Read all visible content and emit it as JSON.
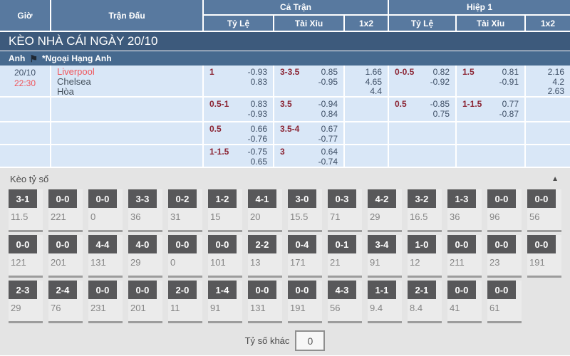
{
  "table_header": {
    "time": "Giờ",
    "match": "Trận Đấu",
    "full_time": "Cả Trận",
    "first_half": "Hiệp 1",
    "handicap": "Tỷ Lệ",
    "over_under": "Tài Xỉu",
    "one_x_two": "1x2"
  },
  "banner_title": "KÈO NHÀ CÁI NGÀY 20/10",
  "league": {
    "country": "Anh",
    "flag_glyph": "⚑",
    "name": "*Ngoại Hạng Anh"
  },
  "match": {
    "date": "20/10",
    "time": "22:30",
    "home": "Liverpool",
    "away": "Chelsea",
    "draw": "Hòa"
  },
  "odds_rows": [
    {
      "ft_handicap": {
        "line": "1",
        "odds": [
          "-0.93",
          "0.83"
        ]
      },
      "ft_over_under": {
        "line": "3-3.5",
        "odds": [
          "0.85",
          "-0.95"
        ]
      },
      "ft_1x2": [
        "1.66",
        "4.65",
        "4.4"
      ],
      "h1_handicap": {
        "line": "0-0.5",
        "odds": [
          "0.82",
          "-0.92"
        ]
      },
      "h1_over_under": {
        "line": "1.5",
        "odds": [
          "0.81",
          "-0.91"
        ]
      },
      "h1_1x2": [
        "2.16",
        "4.2",
        "2.63"
      ]
    },
    {
      "ft_handicap": {
        "line": "0.5-1",
        "odds": [
          "0.83",
          "-0.93"
        ]
      },
      "ft_over_under": {
        "line": "3.5",
        "odds": [
          "-0.94",
          "0.84"
        ]
      },
      "h1_handicap": {
        "line": "0.5",
        "odds": [
          "-0.85",
          "0.75"
        ]
      },
      "h1_over_under": {
        "line": "1-1.5",
        "odds": [
          "0.77",
          "-0.87"
        ]
      }
    },
    {
      "ft_handicap": {
        "line": "0.5",
        "odds": [
          "0.66",
          "-0.76"
        ]
      },
      "ft_over_under": {
        "line": "3.5-4",
        "odds": [
          "0.67",
          "-0.77"
        ]
      }
    },
    {
      "ft_handicap": {
        "line": "1-1.5",
        "odds": [
          "-0.75",
          "0.65"
        ]
      },
      "ft_over_under": {
        "line": "3",
        "odds": [
          "0.64",
          "-0.74"
        ]
      }
    }
  ],
  "score_section": {
    "title": "Kèo tỷ số",
    "collapse_icon": "▲",
    "other_label": "Tỷ số khác",
    "other_value": "0",
    "rows": [
      [
        {
          "score": "3-1",
          "value": "11.5"
        },
        {
          "score": "0-0",
          "value": "221"
        },
        {
          "score": "0-0",
          "value": "0"
        },
        {
          "score": "3-3",
          "value": "36"
        },
        {
          "score": "0-2",
          "value": "31"
        },
        {
          "score": "1-2",
          "value": "15"
        },
        {
          "score": "4-1",
          "value": "20"
        },
        {
          "score": "3-0",
          "value": "15.5"
        },
        {
          "score": "0-3",
          "value": "71"
        },
        {
          "score": "4-2",
          "value": "29"
        },
        {
          "score": "3-2",
          "value": "16.5"
        },
        {
          "score": "1-3",
          "value": "36"
        },
        {
          "score": "0-0",
          "value": "96"
        },
        {
          "score": "0-0",
          "value": "56"
        }
      ],
      [
        {
          "score": "0-0",
          "value": "121"
        },
        {
          "score": "0-0",
          "value": "201"
        },
        {
          "score": "4-4",
          "value": "131"
        },
        {
          "score": "4-0",
          "value": "29"
        },
        {
          "score": "0-0",
          "value": "0"
        },
        {
          "score": "0-0",
          "value": "101"
        },
        {
          "score": "2-2",
          "value": "13"
        },
        {
          "score": "0-4",
          "value": "171"
        },
        {
          "score": "0-1",
          "value": "21"
        },
        {
          "score": "3-4",
          "value": "91"
        },
        {
          "score": "1-0",
          "value": "12"
        },
        {
          "score": "0-0",
          "value": "211"
        },
        {
          "score": "0-0",
          "value": "23"
        },
        {
          "score": "0-0",
          "value": "191"
        }
      ],
      [
        {
          "score": "2-3",
          "value": "29"
        },
        {
          "score": "2-4",
          "value": "76"
        },
        {
          "score": "0-0",
          "value": "231"
        },
        {
          "score": "0-0",
          "value": "201"
        },
        {
          "score": "2-0",
          "value": "11"
        },
        {
          "score": "1-4",
          "value": "91"
        },
        {
          "score": "0-0",
          "value": "131"
        },
        {
          "score": "0-0",
          "value": "191"
        },
        {
          "score": "4-3",
          "value": "56"
        },
        {
          "score": "1-1",
          "value": "9.4"
        },
        {
          "score": "2-1",
          "value": "8.4"
        },
        {
          "score": "0-0",
          "value": "41"
        },
        {
          "score": "0-0",
          "value": "61"
        },
        null
      ]
    ]
  },
  "colors": {
    "header_blue": "#58799f",
    "banner_blue": "#3d5a7c",
    "league_blue": "#476a8f",
    "row_light_blue": "#d9e7f7",
    "line_maroon": "#8b2433",
    "odds_navy": "#3e4f66",
    "accent_red": "#f0545a",
    "section_gray": "#e4e4e4",
    "score_box_gray": "#58585a"
  }
}
